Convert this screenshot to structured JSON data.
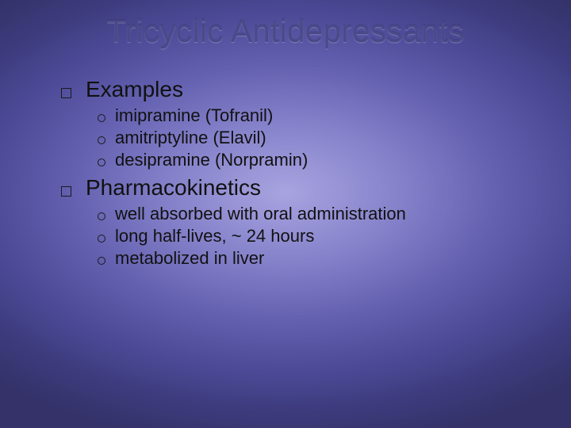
{
  "title": "Tricyclic Antidepressants",
  "title_color": "#4a4a8a",
  "title_fontsize": 40,
  "background_gradient": {
    "type": "radial",
    "stops": [
      "#a8a4e0",
      "#8884cc",
      "#6360b0",
      "#4c4a96",
      "#3d3b7d",
      "#343268"
    ]
  },
  "body_text_color": "#111111",
  "sections": [
    {
      "label": "Examples",
      "bullet_shape": "square-outline",
      "fontsize": 28,
      "items": [
        {
          "text": "imipramine (Tofranil)",
          "bullet_shape": "circle-outline",
          "fontsize": 22
        },
        {
          "text": "amitriptyline (Elavil)",
          "bullet_shape": "circle-outline",
          "fontsize": 22
        },
        {
          "text": "desipramine (Norpramin)",
          "bullet_shape": "circle-outline",
          "fontsize": 22
        }
      ]
    },
    {
      "label": "Pharmacokinetics",
      "bullet_shape": "square-outline",
      "fontsize": 28,
      "items": [
        {
          "text": "well absorbed with oral administration",
          "bullet_shape": "circle-outline",
          "fontsize": 22
        },
        {
          "text": "long half-lives, ~ 24 hours",
          "bullet_shape": "circle-outline",
          "fontsize": 22
        },
        {
          "text": "metabolized in liver",
          "bullet_shape": "circle-outline",
          "fontsize": 22
        }
      ]
    }
  ]
}
